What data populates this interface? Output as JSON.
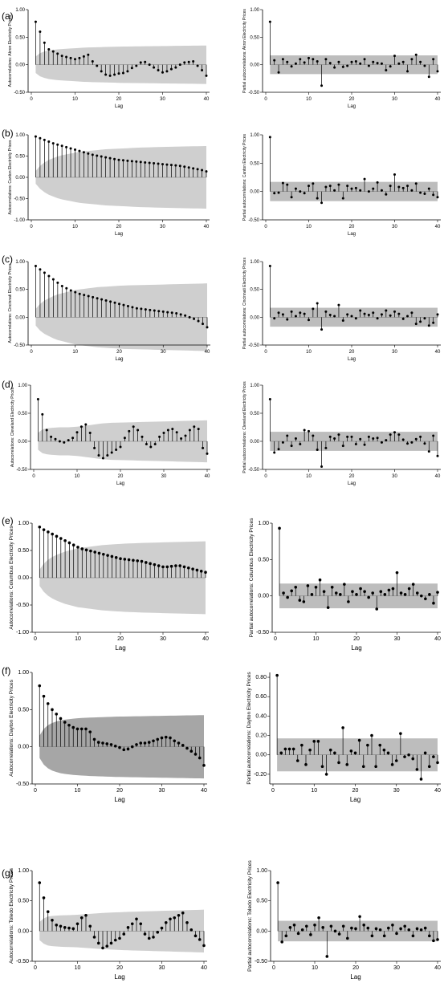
{
  "rows": [
    {
      "label": "(a)",
      "acf_ylabel": "Autocorrelations: Akron Electricity Prices",
      "pacf_ylabel": "Partial autocorrelations: Akron Electricity Prices"
    },
    {
      "label": "(b)",
      "acf_ylabel": "Autocorrelations: Canton Electricity Prices",
      "pacf_ylabel": "Partial autocorrelations: Canton Electricity Prices"
    },
    {
      "label": "(c)",
      "acf_ylabel": "Autocorrelations: Cincinnati Electricity Prices",
      "pacf_ylabel": "Partial autocorrelations: Cincinnati Electricity Prices"
    },
    {
      "label": "(d)",
      "acf_ylabel": "Autocorrelations: Cleveland Electricity Prices",
      "pacf_ylabel": "Partial autocorrelations: Cleveland Electricity Prices"
    },
    {
      "label": "(e)",
      "acf_ylabel": "Autocorrelations: Columbus Electricity Prices",
      "pacf_ylabel": "Partial autocorrelations: Columbus Electricity Prices"
    },
    {
      "label": "(f)",
      "acf_ylabel": "Autocorrelations: Dayton Electricity Prices",
      "pacf_ylabel": "Partial autocorrelations: Dayton Electricity Prices"
    },
    {
      "label": "(g)",
      "acf_ylabel": "Autocorrelations: Toledo Electricity Prices",
      "pacf_ylabel": "Partial autocorrelations: Toledo Electricity Prices"
    }
  ],
  "chart_data": [
    {
      "type": "acf",
      "panel": "(a)",
      "xlabel": "Lag",
      "ylabel": "Autocorrelations: Akron Electricity Prices",
      "xlim": [
        0,
        40
      ],
      "ylim": [
        -0.5,
        1.0
      ],
      "yticks": [
        "-0.50",
        "0.00",
        "0.50",
        "1.00"
      ],
      "xticks": [
        0,
        10,
        20,
        30,
        40
      ],
      "band": [
        0.15,
        0.21,
        0.24,
        0.26,
        0.27,
        0.28,
        0.285,
        0.29,
        0.295,
        0.3,
        0.305,
        0.31,
        0.313,
        0.316,
        0.318,
        0.32,
        0.322,
        0.324,
        0.326,
        0.328,
        0.33,
        0.331,
        0.332,
        0.333,
        0.334,
        0.335,
        0.336,
        0.337,
        0.338,
        0.339,
        0.34,
        0.341,
        0.342,
        0.343,
        0.344,
        0.345,
        0.346,
        0.347,
        0.348,
        0.349
      ],
      "values": [
        0.78,
        0.6,
        0.4,
        0.28,
        0.24,
        0.2,
        0.16,
        0.14,
        0.12,
        0.1,
        0.12,
        0.15,
        0.18,
        0.06,
        -0.02,
        -0.12,
        -0.18,
        -0.2,
        -0.18,
        -0.16,
        -0.15,
        -0.12,
        -0.06,
        -0.02,
        0.04,
        0.05,
        0.0,
        -0.05,
        -0.1,
        -0.14,
        -0.12,
        -0.08,
        -0.05,
        0.0,
        0.04,
        0.05,
        0.06,
        -0.02,
        -0.1,
        -0.2
      ]
    },
    {
      "type": "pacf",
      "panel": "(a)",
      "xlabel": "Lag",
      "ylabel": "Partial autocorrelations: Akron Electricity Prices",
      "xlim": [
        0,
        40
      ],
      "ylim": [
        -0.5,
        1.0
      ],
      "yticks": [
        "-0.50",
        "0.00",
        "0.50",
        "1.00"
      ],
      "xticks": [
        0,
        10,
        20,
        30,
        40
      ],
      "band": 0.17,
      "values": [
        0.78,
        0.08,
        -0.14,
        0.1,
        0.05,
        -0.03,
        0.02,
        0.1,
        0.04,
        0.12,
        0.1,
        0.06,
        -0.38,
        0.1,
        0.03,
        -0.05,
        0.05,
        -0.04,
        -0.02,
        0.05,
        0.06,
        0.02,
        0.1,
        -0.02,
        0.05,
        0.03,
        0.02,
        -0.1,
        -0.03,
        0.16,
        0.02,
        0.05,
        -0.12,
        0.1,
        0.18,
        0.05,
        -0.02,
        -0.22,
        0.1,
        -0.12
      ]
    },
    {
      "type": "acf",
      "panel": "(b)",
      "xlabel": "Lag",
      "ylabel": "Autocorrelations: Canton Electricity Prices",
      "xlim": [
        0,
        40
      ],
      "ylim": [
        -1.0,
        1.0
      ],
      "yticks": [
        "-1.00",
        "-0.50",
        "0.00",
        "0.50",
        "1.00"
      ],
      "xticks": [
        0,
        10,
        20,
        30,
        40
      ],
      "band": [
        0.15,
        0.27,
        0.35,
        0.41,
        0.45,
        0.49,
        0.52,
        0.54,
        0.56,
        0.58,
        0.6,
        0.61,
        0.62,
        0.63,
        0.64,
        0.65,
        0.66,
        0.665,
        0.67,
        0.675,
        0.68,
        0.685,
        0.69,
        0.695,
        0.7,
        0.703,
        0.706,
        0.709,
        0.712,
        0.715,
        0.718,
        0.72,
        0.722,
        0.724,
        0.726,
        0.728,
        0.73,
        0.732,
        0.734,
        0.736
      ],
      "values": [
        0.96,
        0.92,
        0.88,
        0.84,
        0.8,
        0.77,
        0.74,
        0.71,
        0.68,
        0.65,
        0.62,
        0.59,
        0.56,
        0.53,
        0.51,
        0.49,
        0.47,
        0.45,
        0.43,
        0.41,
        0.4,
        0.39,
        0.38,
        0.37,
        0.36,
        0.35,
        0.34,
        0.33,
        0.32,
        0.31,
        0.3,
        0.29,
        0.28,
        0.27,
        0.25,
        0.23,
        0.21,
        0.19,
        0.17,
        0.14
      ]
    },
    {
      "type": "pacf",
      "panel": "(b)",
      "xlabel": "Lag",
      "ylabel": "Partial autocorrelations: Canton Electricity Prices",
      "xlim": [
        0,
        40
      ],
      "ylim": [
        -0.5,
        1.0
      ],
      "yticks": [
        "-0.50",
        "0.00",
        "0.50",
        "1.00"
      ],
      "xticks": [
        0,
        10,
        20,
        30,
        40
      ],
      "band": 0.17,
      "values": [
        0.96,
        -0.03,
        -0.02,
        0.15,
        0.12,
        -0.1,
        0.05,
        0.0,
        -0.03,
        0.1,
        0.14,
        -0.12,
        -0.2,
        0.08,
        0.1,
        0.02,
        0.12,
        -0.12,
        0.1,
        0.05,
        0.06,
        0.02,
        0.22,
        0.0,
        0.05,
        0.16,
        0.02,
        -0.05,
        0.1,
        0.3,
        0.08,
        0.06,
        0.1,
        0.02,
        0.14,
        -0.02,
        -0.04,
        0.05,
        -0.06,
        -0.1
      ]
    },
    {
      "type": "acf",
      "panel": "(c)",
      "xlabel": "Lag",
      "ylabel": "Autocorrelations: Cincinnati Electricity Prices",
      "xlim": [
        0,
        40
      ],
      "ylim": [
        -0.5,
        1.0
      ],
      "yticks": [
        "-0.50",
        "0.00",
        "0.50",
        "1.00"
      ],
      "xticks": [
        0,
        10,
        20,
        30,
        40
      ],
      "band": [
        0.15,
        0.24,
        0.3,
        0.34,
        0.38,
        0.41,
        0.43,
        0.45,
        0.47,
        0.49,
        0.5,
        0.51,
        0.52,
        0.53,
        0.54,
        0.545,
        0.55,
        0.555,
        0.56,
        0.565,
        0.57,
        0.572,
        0.574,
        0.576,
        0.578,
        0.58,
        0.582,
        0.584,
        0.586,
        0.588,
        0.59,
        0.592,
        0.594,
        0.596,
        0.598,
        0.6,
        0.602,
        0.604,
        0.606,
        0.608
      ],
      "values": [
        0.92,
        0.86,
        0.8,
        0.74,
        0.68,
        0.62,
        0.56,
        0.52,
        0.48,
        0.45,
        0.42,
        0.4,
        0.38,
        0.36,
        0.34,
        0.32,
        0.3,
        0.28,
        0.26,
        0.24,
        0.22,
        0.2,
        0.18,
        0.16,
        0.15,
        0.14,
        0.13,
        0.12,
        0.11,
        0.1,
        0.09,
        0.08,
        0.07,
        0.05,
        0.03,
        0.0,
        -0.03,
        -0.07,
        -0.12,
        -0.18
      ]
    },
    {
      "type": "pacf",
      "panel": "(c)",
      "xlabel": "Lag",
      "ylabel": "Partial autocorrelations: Cincinnati Electricity Prices",
      "xlim": [
        0,
        40
      ],
      "ylim": [
        -0.5,
        1.0
      ],
      "yticks": [
        "-0.50",
        "0.00",
        "0.50",
        "1.00"
      ],
      "xticks": [
        0,
        10,
        20,
        30,
        40
      ],
      "band": 0.17,
      "values": [
        0.92,
        -0.02,
        0.08,
        0.05,
        -0.04,
        0.1,
        0.02,
        0.08,
        0.06,
        -0.05,
        0.15,
        0.25,
        -0.22,
        0.1,
        0.04,
        0.02,
        0.22,
        -0.06,
        0.05,
        0.02,
        -0.02,
        0.12,
        0.06,
        0.04,
        0.08,
        -0.02,
        0.05,
        0.12,
        0.03,
        0.1,
        0.06,
        -0.03,
        0.02,
        0.08,
        -0.12,
        -0.08,
        -0.02,
        -0.15,
        -0.1,
        0.05
      ]
    },
    {
      "type": "acf",
      "panel": "(d)",
      "xlabel": "Lag",
      "ylabel": "Autocorrelations: Cleveland Electricity Prices",
      "xlim": [
        0,
        40
      ],
      "ylim": [
        -0.5,
        1.0
      ],
      "yticks": [
        "-0.50",
        "0.00",
        "0.50",
        "1.00"
      ],
      "xticks": [
        0,
        10,
        20,
        30,
        40
      ],
      "band": [
        0.15,
        0.21,
        0.23,
        0.24,
        0.245,
        0.25,
        0.25,
        0.25,
        0.255,
        0.26,
        0.27,
        0.28,
        0.29,
        0.3,
        0.31,
        0.32,
        0.325,
        0.33,
        0.332,
        0.334,
        0.336,
        0.338,
        0.34,
        0.342,
        0.344,
        0.346,
        0.348,
        0.35,
        0.352,
        0.354,
        0.356,
        0.358,
        0.36,
        0.362,
        0.364,
        0.366,
        0.368,
        0.37,
        0.372,
        0.374
      ],
      "values": [
        0.75,
        0.48,
        0.2,
        0.08,
        0.04,
        0.0,
        -0.02,
        0.02,
        0.06,
        0.16,
        0.26,
        0.3,
        0.15,
        -0.12,
        -0.25,
        -0.3,
        -0.25,
        -0.2,
        -0.15,
        -0.1,
        0.06,
        0.18,
        0.26,
        0.2,
        0.08,
        -0.05,
        -0.1,
        -0.05,
        0.08,
        0.15,
        0.2,
        0.22,
        0.16,
        0.05,
        0.1,
        0.2,
        0.26,
        0.22,
        -0.12,
        -0.22
      ]
    },
    {
      "type": "pacf",
      "panel": "(d)",
      "xlabel": "Lag",
      "ylabel": "Partial autocorrelations: Cleveland Electricity Prices",
      "xlim": [
        0,
        40
      ],
      "ylim": [
        -0.5,
        1.0
      ],
      "yticks": [
        "-0.50",
        "0.00",
        "0.50",
        "1.00"
      ],
      "xticks": [
        0,
        10,
        20,
        30,
        40
      ],
      "band": 0.17,
      "values": [
        0.75,
        -0.2,
        -0.14,
        -0.02,
        0.1,
        -0.08,
        0.05,
        -0.05,
        0.2,
        0.18,
        0.1,
        -0.15,
        -0.45,
        -0.12,
        0.08,
        0.05,
        0.12,
        -0.08,
        0.08,
        0.08,
        -0.05,
        0.04,
        -0.06,
        0.08,
        0.05,
        0.06,
        -0.02,
        0.02,
        0.12,
        0.16,
        0.12,
        0.03,
        -0.04,
        -0.02,
        0.04,
        0.08,
        -0.04,
        -0.18,
        0.1,
        -0.26
      ]
    },
    {
      "type": "acf",
      "panel": "(e)",
      "xlabel": "Lag",
      "ylabel": "Autocorrelations: Columbus Electricity Prices",
      "xlim": [
        0,
        40
      ],
      "ylim": [
        -1.0,
        1.0
      ],
      "yticks": [
        "-1.00",
        "-0.50",
        "0.00",
        "0.50",
        "1.00"
      ],
      "xticks": [
        0,
        10,
        20,
        30,
        40
      ],
      "band": [
        0.15,
        0.26,
        0.33,
        0.38,
        0.42,
        0.45,
        0.48,
        0.5,
        0.52,
        0.54,
        0.55,
        0.56,
        0.57,
        0.58,
        0.59,
        0.6,
        0.605,
        0.61,
        0.615,
        0.62,
        0.625,
        0.628,
        0.631,
        0.634,
        0.637,
        0.64,
        0.642,
        0.644,
        0.646,
        0.648,
        0.65,
        0.652,
        0.654,
        0.656,
        0.658,
        0.66,
        0.662,
        0.664,
        0.666,
        0.668
      ],
      "values": [
        0.93,
        0.88,
        0.84,
        0.8,
        0.76,
        0.72,
        0.68,
        0.64,
        0.6,
        0.56,
        0.53,
        0.51,
        0.49,
        0.47,
        0.45,
        0.43,
        0.41,
        0.39,
        0.37,
        0.35,
        0.34,
        0.33,
        0.32,
        0.31,
        0.3,
        0.28,
        0.26,
        0.24,
        0.22,
        0.2,
        0.2,
        0.21,
        0.22,
        0.22,
        0.2,
        0.18,
        0.16,
        0.14,
        0.12,
        0.1
      ]
    },
    {
      "type": "pacf",
      "panel": "(e)",
      "xlabel": "Lag",
      "ylabel": "Partial autocorrelations: Columbus Electricity Prices",
      "xlim": [
        0,
        40
      ],
      "ylim": [
        -0.5,
        1.0
      ],
      "yticks": [
        "-0.50",
        "0.00",
        "0.50",
        "1.00"
      ],
      "xticks": [
        0,
        10,
        20,
        30,
        40
      ],
      "band": 0.17,
      "values": [
        0.93,
        0.04,
        -0.02,
        0.07,
        0.12,
        -0.06,
        -0.08,
        0.14,
        0.02,
        0.12,
        0.22,
        0.06,
        -0.16,
        0.12,
        0.04,
        0.02,
        0.16,
        -0.08,
        0.06,
        0.02,
        0.1,
        0.06,
        -0.02,
        0.04,
        -0.18,
        0.06,
        0.02,
        0.08,
        0.1,
        0.32,
        0.04,
        0.02,
        0.1,
        0.16,
        0.04,
        0.0,
        -0.04,
        0.02,
        -0.1,
        0.05
      ]
    },
    {
      "type": "acf",
      "panel": "(f)",
      "xlabel": "Lag",
      "ylabel": "Autocorrelations: Dayton Electricity Prices",
      "xlim": [
        0,
        40
      ],
      "ylim": [
        -0.5,
        1.0
      ],
      "yticks": [
        "-0.50",
        "0.00",
        "0.50",
        "1.00"
      ],
      "xticks": [
        0,
        10,
        20,
        30,
        40
      ],
      "band": [
        0.15,
        0.24,
        0.29,
        0.32,
        0.34,
        0.355,
        0.365,
        0.372,
        0.378,
        0.383,
        0.387,
        0.39,
        0.393,
        0.395,
        0.397,
        0.399,
        0.401,
        0.403,
        0.405,
        0.406,
        0.407,
        0.408,
        0.409,
        0.41,
        0.411,
        0.412,
        0.413,
        0.414,
        0.415,
        0.416,
        0.417,
        0.418,
        0.419,
        0.42,
        0.421,
        0.422,
        0.423,
        0.424,
        0.425,
        0.426
      ],
      "values": [
        0.82,
        0.68,
        0.58,
        0.5,
        0.44,
        0.38,
        0.33,
        0.29,
        0.26,
        0.24,
        0.24,
        0.24,
        0.2,
        0.1,
        0.06,
        0.05,
        0.04,
        0.03,
        0.01,
        -0.01,
        -0.04,
        -0.03,
        0.0,
        0.03,
        0.05,
        0.05,
        0.06,
        0.08,
        0.1,
        0.12,
        0.13,
        0.12,
        0.08,
        0.05,
        0.02,
        -0.02,
        -0.06,
        -0.1,
        -0.15,
        -0.25
      ]
    },
    {
      "type": "pacf",
      "panel": "(f)",
      "xlabel": "Lag",
      "ylabel": "Partial autocorrelations: Dayton Electricity Prices",
      "xlim": [
        0,
        40
      ],
      "ylim": [
        -0.3,
        0.85
      ],
      "yticks": [
        "-0.20",
        "0.00",
        "0.20",
        "0.40",
        "0.60",
        "0.80"
      ],
      "xticks": [
        0,
        10,
        20,
        30,
        40
      ],
      "band": 0.17,
      "values": [
        0.82,
        0.02,
        0.06,
        0.06,
        0.06,
        -0.06,
        0.1,
        -0.1,
        0.05,
        0.14,
        0.14,
        -0.12,
        -0.2,
        0.05,
        0.02,
        -0.08,
        0.28,
        -0.1,
        0.04,
        0.02,
        0.15,
        -0.12,
        0.1,
        0.2,
        -0.12,
        0.1,
        0.05,
        0.02,
        -0.1,
        -0.06,
        0.22,
        -0.02,
        0.0,
        -0.04,
        -0.15,
        -0.25,
        0.02,
        -0.12,
        -0.02,
        -0.08
      ]
    },
    {
      "type": "acf",
      "panel": "(g)",
      "xlabel": "Lag",
      "ylabel": "Autocorrelations: Toledo Electricity Prices",
      "xlim": [
        0,
        40
      ],
      "ylim": [
        -0.5,
        1.0
      ],
      "yticks": [
        "-0.50",
        "0.00",
        "0.50",
        "1.00"
      ],
      "xticks": [
        0,
        10,
        20,
        30,
        40
      ],
      "band": [
        0.15,
        0.21,
        0.24,
        0.25,
        0.255,
        0.26,
        0.262,
        0.264,
        0.266,
        0.27,
        0.275,
        0.28,
        0.285,
        0.29,
        0.295,
        0.3,
        0.303,
        0.306,
        0.309,
        0.312,
        0.315,
        0.318,
        0.32,
        0.322,
        0.324,
        0.326,
        0.328,
        0.33,
        0.332,
        0.334,
        0.336,
        0.338,
        0.34,
        0.342,
        0.344,
        0.346,
        0.348,
        0.35,
        0.352,
        0.354
      ],
      "values": [
        0.8,
        0.55,
        0.32,
        0.18,
        0.1,
        0.08,
        0.06,
        0.05,
        0.04,
        0.12,
        0.22,
        0.26,
        0.08,
        -0.1,
        -0.2,
        -0.28,
        -0.25,
        -0.2,
        -0.15,
        -0.12,
        -0.05,
        0.06,
        0.12,
        0.2,
        0.12,
        -0.05,
        -0.12,
        -0.1,
        -0.02,
        0.05,
        0.14,
        0.2,
        0.22,
        0.26,
        0.3,
        0.14,
        0.02,
        -0.08,
        -0.14,
        -0.24
      ]
    },
    {
      "type": "pacf",
      "panel": "(g)",
      "xlabel": "Lag",
      "ylabel": "Partial autocorrelations: Toledo Electricity Prices",
      "xlim": [
        0,
        40
      ],
      "ylim": [
        -0.5,
        1.0
      ],
      "yticks": [
        "-0.50",
        "0.00",
        "0.50",
        "1.00"
      ],
      "xticks": [
        0,
        10,
        20,
        30,
        40
      ],
      "band": 0.17,
      "values": [
        0.8,
        -0.18,
        -0.08,
        0.06,
        0.1,
        -0.04,
        0.02,
        0.08,
        -0.06,
        0.1,
        0.22,
        0.06,
        -0.42,
        0.08,
        0.0,
        -0.05,
        0.08,
        -0.12,
        0.05,
        0.04,
        0.24,
        0.1,
        0.05,
        -0.08,
        0.04,
        0.02,
        -0.08,
        0.05,
        0.1,
        -0.04,
        0.04,
        0.08,
        0.02,
        -0.08,
        0.04,
        0.02,
        0.05,
        -0.08,
        -0.16,
        -0.14
      ]
    }
  ]
}
